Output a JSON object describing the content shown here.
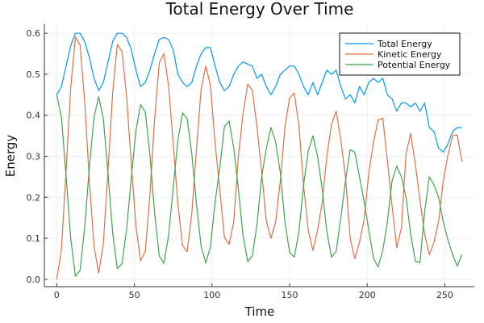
{
  "chart_data": {
    "type": "line",
    "title": "Total Energy Over Time",
    "xlabel": "Time",
    "ylabel": "Energy",
    "xlim": [
      -8,
      269
    ],
    "ylim": [
      -0.018,
      0.622
    ],
    "xticks": [
      0,
      50,
      100,
      150,
      200,
      250
    ],
    "yticks": [
      0.0,
      0.1,
      0.2,
      0.3,
      0.4,
      0.5,
      0.6
    ],
    "ytick_labels": [
      "0.0",
      "0.1",
      "0.2",
      "0.3",
      "0.4",
      "0.5",
      "0.6"
    ],
    "grid": true,
    "legend_position": "top-right",
    "x": [
      0,
      3,
      6,
      9,
      12,
      15,
      18,
      21,
      24,
      27,
      30,
      33,
      36,
      39,
      42,
      45,
      48,
      51,
      54,
      57,
      60,
      63,
      66,
      69,
      72,
      75,
      78,
      81,
      84,
      87,
      90,
      93,
      96,
      99,
      102,
      105,
      108,
      111,
      114,
      117,
      120,
      123,
      126,
      129,
      132,
      135,
      138,
      141,
      144,
      147,
      150,
      153,
      156,
      159,
      162,
      165,
      168,
      171,
      174,
      177,
      180,
      183,
      186,
      189,
      192,
      195,
      198,
      201,
      204,
      207,
      210,
      213,
      216,
      219,
      222,
      225,
      228,
      231,
      234,
      237,
      240,
      243,
      246,
      249,
      252,
      255,
      258,
      261
    ],
    "series": [
      {
        "name": "Total Energy",
        "color": "#009af9",
        "values": [
          0.45,
          0.47,
          0.52,
          0.57,
          0.6,
          0.6,
          0.58,
          0.54,
          0.49,
          0.46,
          0.48,
          0.53,
          0.58,
          0.6,
          0.6,
          0.59,
          0.56,
          0.51,
          0.47,
          0.48,
          0.51,
          0.55,
          0.585,
          0.59,
          0.585,
          0.56,
          0.5,
          0.48,
          0.47,
          0.48,
          0.52,
          0.55,
          0.565,
          0.565,
          0.52,
          0.48,
          0.46,
          0.47,
          0.5,
          0.52,
          0.53,
          0.525,
          0.52,
          0.49,
          0.5,
          0.47,
          0.45,
          0.47,
          0.5,
          0.51,
          0.52,
          0.52,
          0.5,
          0.47,
          0.45,
          0.48,
          0.45,
          0.48,
          0.51,
          0.5,
          0.51,
          0.47,
          0.44,
          0.45,
          0.43,
          0.47,
          0.45,
          0.48,
          0.49,
          0.48,
          0.49,
          0.45,
          0.44,
          0.41,
          0.43,
          0.43,
          0.42,
          0.43,
          0.41,
          0.43,
          0.37,
          0.36,
          0.32,
          0.31,
          0.33,
          0.36,
          0.37,
          0.37
        ]
      },
      {
        "name": "Kinetic Energy",
        "color": "#e26f46",
        "values": [
          0.0,
          0.075,
          0.264,
          0.468,
          0.591,
          0.571,
          0.433,
          0.24,
          0.08,
          0.015,
          0.086,
          0.264,
          0.456,
          0.572,
          0.556,
          0.445,
          0.28,
          0.13,
          0.045,
          0.068,
          0.205,
          0.388,
          0.527,
          0.55,
          0.473,
          0.332,
          0.184,
          0.082,
          0.067,
          0.161,
          0.318,
          0.463,
          0.52,
          0.472,
          0.33,
          0.22,
          0.102,
          0.085,
          0.14,
          0.3,
          0.404,
          0.476,
          0.461,
          0.372,
          0.26,
          0.142,
          0.1,
          0.14,
          0.24,
          0.37,
          0.442,
          0.454,
          0.374,
          0.23,
          0.119,
          0.07,
          0.12,
          0.187,
          0.3,
          0.378,
          0.41,
          0.34,
          0.25,
          0.1,
          0.05,
          0.09,
          0.145,
          0.26,
          0.333,
          0.388,
          0.393,
          0.29,
          0.18,
          0.077,
          0.125,
          0.305,
          0.356,
          0.28,
          0.192,
          0.11,
          0.06,
          0.09,
          0.141,
          0.24,
          0.303,
          0.35,
          0.352,
          0.287
        ]
      },
      {
        "name": "Potential Energy",
        "color": "#3ea44e",
        "values": [
          0.45,
          0.394,
          0.252,
          0.099,
          0.007,
          0.022,
          0.127,
          0.274,
          0.396,
          0.445,
          0.392,
          0.258,
          0.113,
          0.026,
          0.038,
          0.123,
          0.248,
          0.362,
          0.426,
          0.408,
          0.304,
          0.163,
          0.057,
          0.039,
          0.106,
          0.222,
          0.339,
          0.406,
          0.392,
          0.305,
          0.182,
          0.081,
          0.04,
          0.079,
          0.19,
          0.27,
          0.372,
          0.386,
          0.32,
          0.22,
          0.106,
          0.043,
          0.057,
          0.134,
          0.25,
          0.32,
          0.37,
          0.335,
          0.26,
          0.141,
          0.066,
          0.054,
          0.116,
          0.23,
          0.312,
          0.35,
          0.3,
          0.22,
          0.116,
          0.054,
          0.068,
          0.15,
          0.24,
          0.316,
          0.31,
          0.25,
          0.19,
          0.12,
          0.052,
          0.03,
          0.07,
          0.14,
          0.24,
          0.276,
          0.25,
          0.2,
          0.111,
          0.044,
          0.041,
          0.165,
          0.25,
          0.23,
          0.2,
          0.14,
          0.096,
          0.06,
          0.032,
          0.06
        ]
      }
    ]
  }
}
